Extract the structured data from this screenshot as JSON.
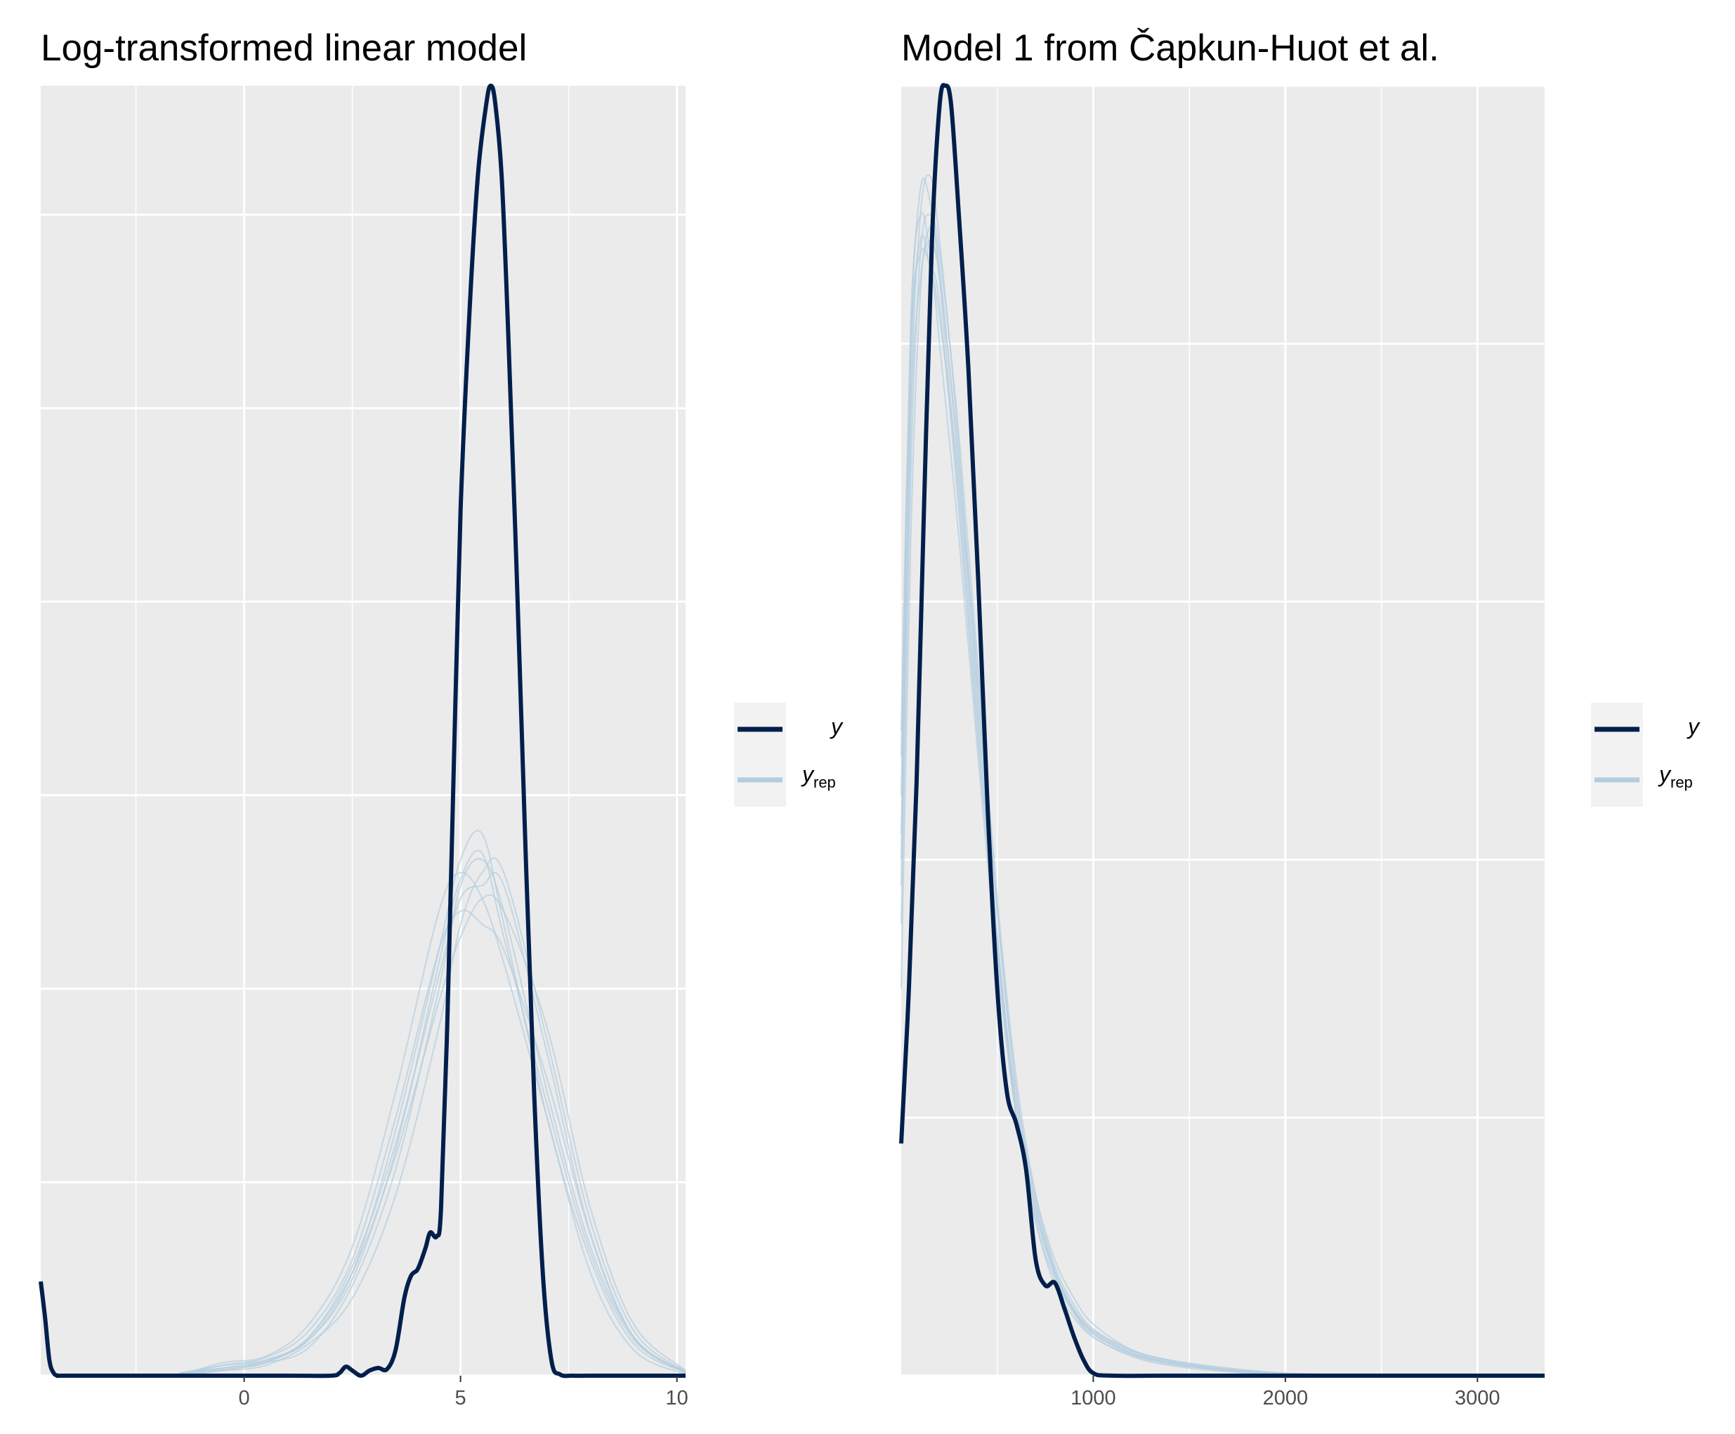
{
  "chart_data": [
    {
      "type": "line",
      "title": "Log-transformed linear model",
      "xlabel": "",
      "ylabel": "",
      "xlim": [
        -4.7,
        10.2
      ],
      "ylim": [
        0,
        1
      ],
      "x_ticks": [
        0,
        5,
        10
      ],
      "x_tick_labels": [
        "0",
        "5",
        "10"
      ],
      "x_minor_breaks": [
        -2.5,
        2.5,
        7.5
      ],
      "y_breaks": [
        0.0,
        0.15,
        0.3,
        0.45,
        0.6,
        0.75,
        0.9
      ],
      "grid": true,
      "legend_position": "right",
      "legend": [
        {
          "label": "y",
          "sub": "",
          "color": "#011f4b"
        },
        {
          "label": "y",
          "sub": "rep",
          "color": "#b3cde0"
        }
      ],
      "series": [
        {
          "name": "y",
          "role": "observed",
          "color": "#011f4b",
          "x": [
            -4.7,
            -4.6,
            -4.5,
            -4.4,
            -4.3,
            -4.2,
            -3.0,
            -1.0,
            1.0,
            2.0,
            2.2,
            2.35,
            2.5,
            2.7,
            2.9,
            3.1,
            3.3,
            3.5,
            3.7,
            3.85,
            4.0,
            4.1,
            4.2,
            4.3,
            4.45,
            4.55,
            4.7,
            4.85,
            5.0,
            5.2,
            5.4,
            5.6,
            5.7,
            5.8,
            5.95,
            6.1,
            6.3,
            6.5,
            6.7,
            6.9,
            7.1,
            7.3,
            7.6,
            8.0,
            9.0,
            10.2
          ],
          "y": [
            0.073,
            0.045,
            0.012,
            0.002,
            0.0,
            0.0,
            0.0,
            0.0,
            0.0,
            0.0,
            0.002,
            0.007,
            0.004,
            0.0,
            0.004,
            0.006,
            0.005,
            0.02,
            0.06,
            0.077,
            0.082,
            0.09,
            0.1,
            0.111,
            0.108,
            0.13,
            0.28,
            0.48,
            0.67,
            0.82,
            0.93,
            0.987,
            1.0,
            0.987,
            0.93,
            0.81,
            0.62,
            0.41,
            0.22,
            0.08,
            0.012,
            0.001,
            0.0,
            0.0,
            0.0,
            0.0
          ]
        },
        {
          "name": "y_rep",
          "role": "replicated",
          "color": "#b3cde0",
          "x": [
            -1.5,
            -0.5,
            0.5,
            1.5,
            2.5,
            3.5,
            4.5,
            5.0,
            5.5,
            6.0,
            7.0,
            8.0,
            9.0,
            10.2
          ],
          "y": [
            0.0,
            0.008,
            0.012,
            0.028,
            0.08,
            0.19,
            0.33,
            0.4,
            0.42,
            0.35,
            0.2,
            0.09,
            0.025,
            0.002
          ]
        },
        {
          "name": "y_rep",
          "role": "replicated",
          "color": "#b3cde0",
          "x": [
            -1.5,
            -0.5,
            0.5,
            1.5,
            2.5,
            3.5,
            4.5,
            5.0,
            5.5,
            6.0,
            7.0,
            8.0,
            9.0,
            10.2
          ],
          "y": [
            0.002,
            0.006,
            0.012,
            0.03,
            0.085,
            0.18,
            0.31,
            0.37,
            0.38,
            0.38,
            0.25,
            0.11,
            0.03,
            0.003
          ]
        },
        {
          "name": "y_rep",
          "role": "replicated",
          "color": "#b3cde0",
          "x": [
            -1.5,
            -0.5,
            0.5,
            1.5,
            2.5,
            3.5,
            4.5,
            5.0,
            5.5,
            6.0,
            7.0,
            8.0,
            9.0,
            10.2
          ],
          "y": [
            0.001,
            0.004,
            0.008,
            0.025,
            0.06,
            0.14,
            0.27,
            0.35,
            0.39,
            0.39,
            0.26,
            0.12,
            0.035,
            0.003
          ]
        },
        {
          "name": "y_rep",
          "role": "replicated",
          "color": "#b3cde0",
          "x": [
            -1.5,
            -0.5,
            0.5,
            1.5,
            2.5,
            3.5,
            4.5,
            5.0,
            5.5,
            6.0,
            7.0,
            8.0,
            9.0,
            10.2
          ],
          "y": [
            0.0,
            0.01,
            0.015,
            0.04,
            0.1,
            0.22,
            0.36,
            0.39,
            0.37,
            0.32,
            0.2,
            0.08,
            0.02,
            0.001
          ]
        },
        {
          "name": "y_rep",
          "role": "replicated",
          "color": "#b3cde0",
          "x": [
            -1.5,
            -0.5,
            0.5,
            1.5,
            2.5,
            3.5,
            4.5,
            5.0,
            5.5,
            6.0,
            7.0,
            8.0,
            9.0,
            10.2
          ],
          "y": [
            0.001,
            0.005,
            0.01,
            0.03,
            0.08,
            0.17,
            0.29,
            0.34,
            0.37,
            0.36,
            0.27,
            0.13,
            0.04,
            0.004
          ]
        },
        {
          "name": "y_rep",
          "role": "replicated",
          "color": "#b3cde0",
          "x": [
            -1.5,
            -0.5,
            0.5,
            1.5,
            2.5,
            3.5,
            4.5,
            5.0,
            5.5,
            6.0,
            7.0,
            8.0,
            9.0,
            10.2
          ],
          "y": [
            0.0,
            0.004,
            0.01,
            0.022,
            0.07,
            0.16,
            0.3,
            0.38,
            0.4,
            0.36,
            0.22,
            0.1,
            0.03,
            0.002
          ]
        },
        {
          "name": "y_rep",
          "role": "replicated",
          "color": "#b3cde0",
          "x": [
            -1.5,
            -0.5,
            0.5,
            1.5,
            2.5,
            3.5,
            4.5,
            5.0,
            5.5,
            6.0,
            7.0,
            8.0,
            9.0,
            10.2
          ],
          "y": [
            0.002,
            0.008,
            0.014,
            0.035,
            0.09,
            0.2,
            0.33,
            0.36,
            0.35,
            0.33,
            0.23,
            0.11,
            0.03,
            0.003
          ]
        },
        {
          "name": "y_rep",
          "role": "replicated",
          "color": "#b3cde0",
          "x": [
            -1.5,
            -0.5,
            0.5,
            1.5,
            2.5,
            3.5,
            4.5,
            5.0,
            5.5,
            6.0,
            7.0,
            8.0,
            9.0,
            10.2
          ],
          "y": [
            0.001,
            0.006,
            0.011,
            0.028,
            0.075,
            0.175,
            0.32,
            0.385,
            0.405,
            0.34,
            0.21,
            0.095,
            0.028,
            0.002
          ]
        }
      ]
    },
    {
      "type": "line",
      "title": "Model 1 from Čapkun-Huot et al.",
      "xlabel": "",
      "ylabel": "",
      "xlim": [
        0,
        3350
      ],
      "ylim": [
        0,
        1
      ],
      "x_ticks": [
        1000,
        2000,
        3000
      ],
      "x_tick_labels": [
        "1000",
        "2000",
        "3000"
      ],
      "x_minor_breaks": [
        500,
        1500,
        2500
      ],
      "y_breaks": [
        0.0,
        0.2,
        0.4,
        0.6,
        0.8,
        1.0
      ],
      "grid": true,
      "legend_position": "right",
      "legend": [
        {
          "label": "y",
          "sub": "",
          "color": "#011f4b"
        },
        {
          "label": "y",
          "sub": "rep",
          "color": "#b3cde0"
        }
      ],
      "series": [
        {
          "name": "y",
          "role": "observed",
          "color": "#011f4b",
          "x": [
            0,
            40,
            80,
            120,
            160,
            200,
            230,
            260,
            300,
            350,
            400,
            450,
            500,
            550,
            600,
            650,
            700,
            750,
            800,
            850,
            900,
            950,
            1000,
            1100,
            1500,
            3350
          ],
          "y": [
            0.18,
            0.3,
            0.46,
            0.68,
            0.88,
            0.985,
            1.0,
            0.985,
            0.9,
            0.78,
            0.62,
            0.44,
            0.3,
            0.22,
            0.195,
            0.16,
            0.09,
            0.07,
            0.072,
            0.052,
            0.03,
            0.012,
            0.002,
            0.0,
            0.0,
            0.0
          ]
        },
        {
          "name": "y_rep",
          "role": "replicated",
          "color": "#b3cde0",
          "x": [
            0,
            50,
            100,
            150,
            200,
            300,
            400,
            500,
            600,
            700,
            800,
            900,
            1000,
            1200,
            1400,
            1700,
            2000,
            2500
          ],
          "y": [
            0.38,
            0.75,
            0.9,
            0.93,
            0.88,
            0.72,
            0.52,
            0.34,
            0.2,
            0.12,
            0.07,
            0.045,
            0.03,
            0.015,
            0.008,
            0.003,
            0.001,
            0.0
          ]
        },
        {
          "name": "y_rep",
          "role": "replicated",
          "color": "#b3cde0",
          "x": [
            0,
            50,
            100,
            150,
            200,
            300,
            400,
            500,
            600,
            700,
            800,
            900,
            1000,
            1200,
            1400,
            1700,
            2000,
            2500
          ],
          "y": [
            0.45,
            0.8,
            0.92,
            0.91,
            0.85,
            0.68,
            0.5,
            0.33,
            0.21,
            0.13,
            0.08,
            0.05,
            0.032,
            0.017,
            0.01,
            0.004,
            0.001,
            0.0
          ]
        },
        {
          "name": "y_rep",
          "role": "replicated",
          "color": "#b3cde0",
          "x": [
            0,
            50,
            100,
            150,
            200,
            300,
            400,
            500,
            600,
            700,
            800,
            900,
            1000,
            1200,
            1400,
            1700,
            2000,
            2500
          ],
          "y": [
            0.3,
            0.65,
            0.84,
            0.89,
            0.86,
            0.7,
            0.53,
            0.36,
            0.22,
            0.14,
            0.09,
            0.06,
            0.04,
            0.02,
            0.012,
            0.005,
            0.002,
            0.0
          ]
        },
        {
          "name": "y_rep",
          "role": "replicated",
          "color": "#b3cde0",
          "x": [
            0,
            50,
            100,
            150,
            200,
            300,
            400,
            500,
            600,
            700,
            800,
            900,
            1000,
            1200,
            1400,
            1700,
            2000,
            2500
          ],
          "y": [
            0.5,
            0.82,
            0.9,
            0.87,
            0.8,
            0.65,
            0.48,
            0.32,
            0.2,
            0.12,
            0.075,
            0.048,
            0.03,
            0.016,
            0.009,
            0.004,
            0.001,
            0.0
          ]
        },
        {
          "name": "y_rep",
          "role": "replicated",
          "color": "#b3cde0",
          "x": [
            0,
            50,
            100,
            150,
            200,
            300,
            400,
            500,
            600,
            700,
            800,
            900,
            1000,
            1200,
            1400,
            1700,
            2000,
            2500
          ],
          "y": [
            0.35,
            0.7,
            0.87,
            0.9,
            0.87,
            0.73,
            0.55,
            0.37,
            0.23,
            0.14,
            0.085,
            0.055,
            0.036,
            0.02,
            0.012,
            0.006,
            0.002,
            0.0
          ]
        },
        {
          "name": "y_rep",
          "role": "replicated",
          "color": "#b3cde0",
          "x": [
            0,
            50,
            100,
            150,
            200,
            300,
            400,
            500,
            600,
            700,
            800,
            900,
            1000,
            1200,
            1400,
            1700,
            2000,
            2500
          ],
          "y": [
            0.42,
            0.78,
            0.88,
            0.86,
            0.82,
            0.69,
            0.51,
            0.34,
            0.21,
            0.13,
            0.08,
            0.05,
            0.034,
            0.018,
            0.01,
            0.004,
            0.001,
            0.0
          ]
        },
        {
          "name": "y_rep",
          "role": "replicated",
          "color": "#b3cde0",
          "x": [
            0,
            50,
            100,
            150,
            200,
            300,
            400,
            500,
            600,
            700,
            800,
            900,
            1000,
            1200,
            1400,
            1700,
            2000,
            2500
          ],
          "y": [
            0.4,
            0.74,
            0.85,
            0.88,
            0.85,
            0.71,
            0.54,
            0.36,
            0.22,
            0.135,
            0.082,
            0.052,
            0.035,
            0.019,
            0.011,
            0.005,
            0.002,
            0.0
          ]
        },
        {
          "name": "y_rep",
          "role": "replicated",
          "color": "#b3cde0",
          "x": [
            0,
            50,
            100,
            150,
            200,
            300,
            400,
            500,
            600,
            700,
            800,
            900,
            1000,
            1200,
            1400,
            1700,
            2000,
            2500
          ],
          "y": [
            0.48,
            0.8,
            0.87,
            0.86,
            0.83,
            0.67,
            0.49,
            0.33,
            0.2,
            0.125,
            0.078,
            0.05,
            0.033,
            0.017,
            0.01,
            0.004,
            0.001,
            0.0
          ]
        }
      ]
    }
  ]
}
